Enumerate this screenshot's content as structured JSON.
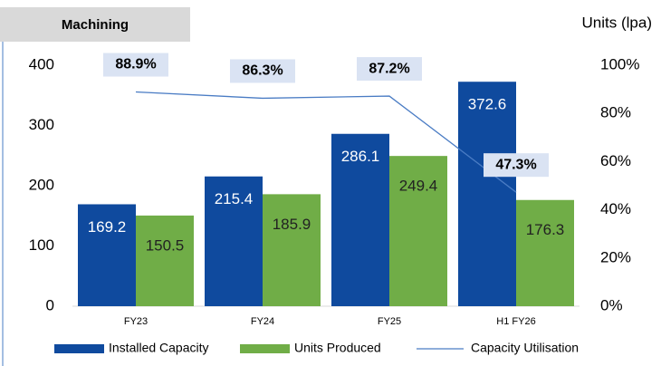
{
  "chart_data": {
    "type": "bar",
    "title": "Machining",
    "y2_label": "Units (lpa)",
    "categories": [
      "FY23",
      "FY24",
      "FY25",
      "H1 FY26"
    ],
    "series": [
      {
        "name": "Installed Capacity",
        "color": "#0f4a9e",
        "values": [
          169.2,
          215.4,
          286.1,
          372.6
        ]
      },
      {
        "name": "Units Produced",
        "color": "#70ad47",
        "values": [
          150.5,
          185.9,
          249.4,
          176.3
        ]
      },
      {
        "name": "Capacity Utilisation",
        "color": "#4a7cc4",
        "axis": "y2",
        "values": [
          88.9,
          86.3,
          87.2,
          47.3
        ],
        "value_labels": [
          "88.9%",
          "86.3%",
          "87.2%",
          "47.3%"
        ]
      }
    ],
    "ylim": [
      0,
      400
    ],
    "yticks": [
      0,
      100,
      200,
      300,
      400
    ],
    "y2lim": [
      0,
      100
    ],
    "y2ticks": [
      {
        "value": 0,
        "label": "0%"
      },
      {
        "value": 20,
        "label": "20%"
      },
      {
        "value": 40,
        "label": "40%"
      },
      {
        "value": 60,
        "label": "60%"
      },
      {
        "value": 80,
        "label": "80%"
      },
      {
        "value": 100,
        "label": "100%"
      }
    ],
    "legend": "bottom"
  }
}
